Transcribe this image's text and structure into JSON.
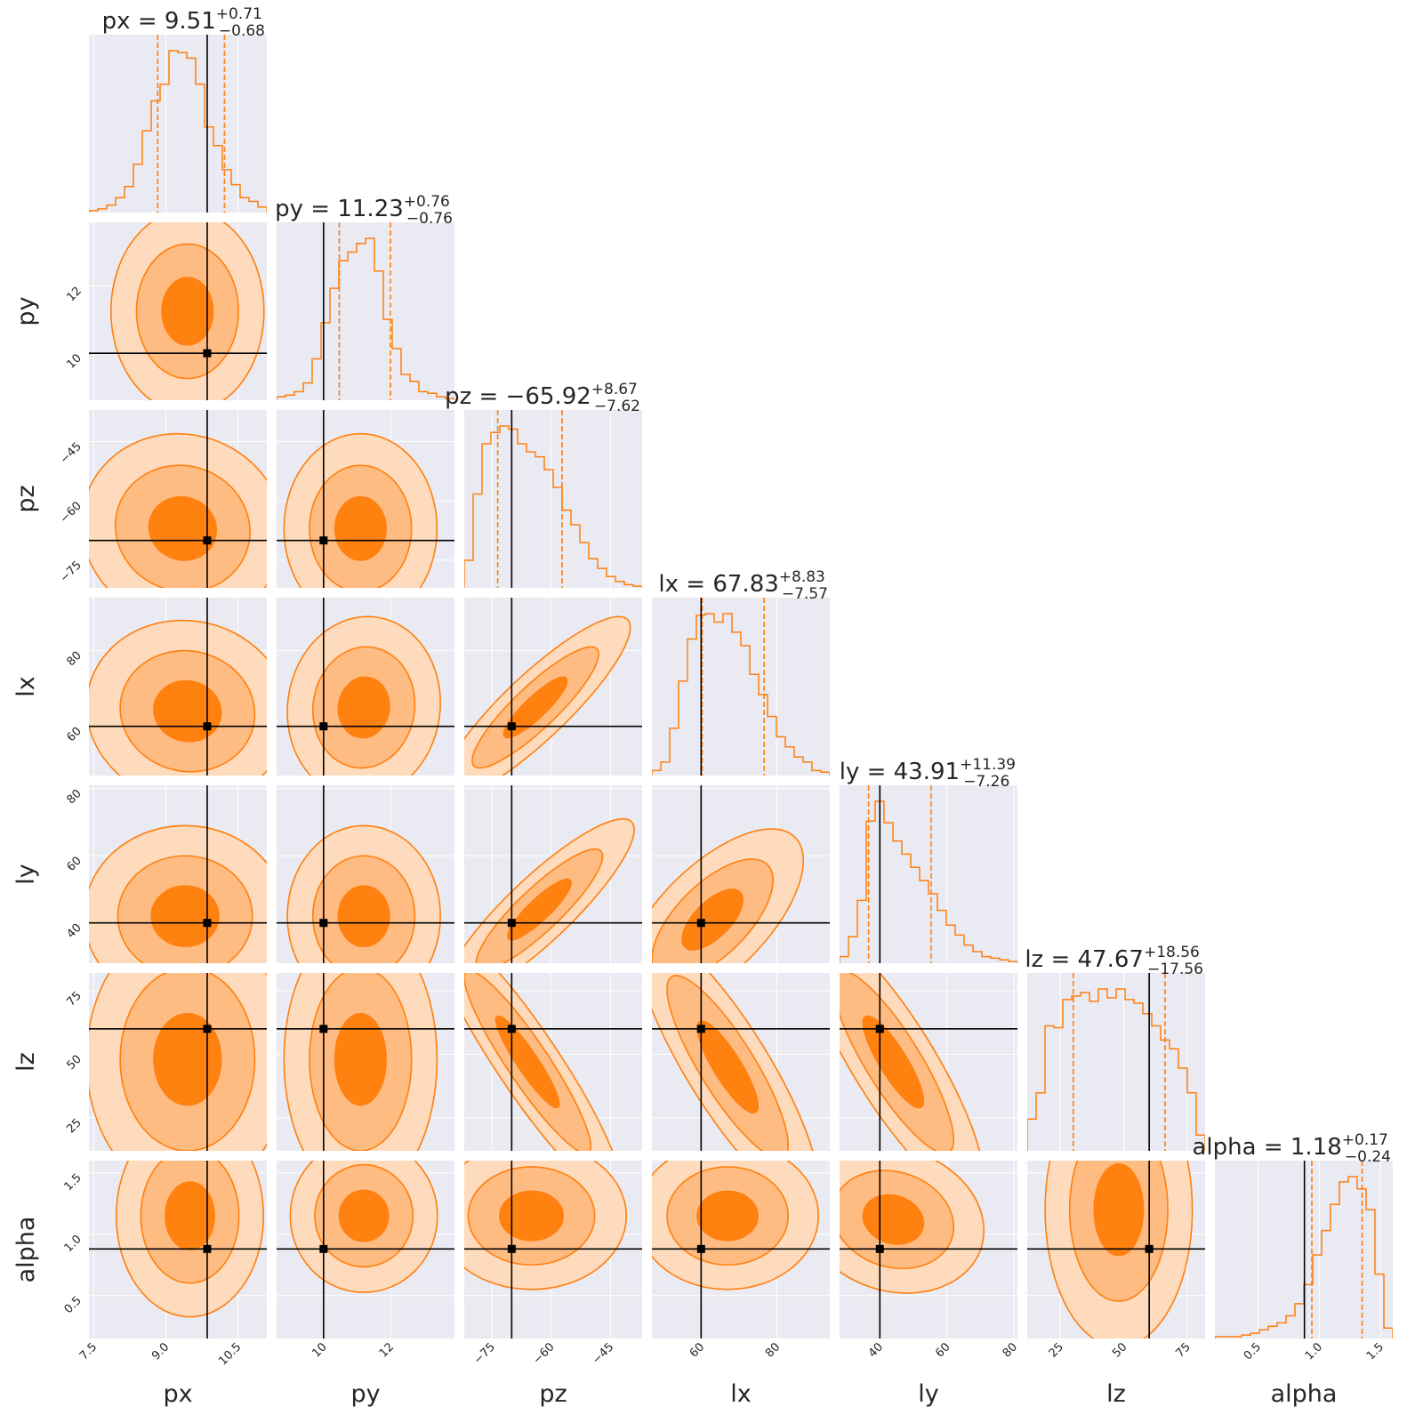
{
  "chart_data": {
    "type": "corner",
    "parameters": [
      "px",
      "py",
      "pz",
      "lx",
      "ly",
      "lz",
      "alpha"
    ],
    "colors": {
      "accent": "#ff7f0e",
      "truth": "#000000",
      "panel_bg": "#eaeaf2",
      "grid": "#ffffff"
    },
    "contour_levels": [
      "1-sigma",
      "2-sigma",
      "3-sigma"
    ],
    "params": [
      {
        "name": "px",
        "median": "9.51",
        "plus": "+0.71",
        "minus": "−0.68",
        "truth": 9.86,
        "range": [
          7.4,
          11.1
        ],
        "ticks": [
          7.5,
          9.0,
          10.5
        ],
        "ticklabels": [
          "7.5",
          "9.0",
          "10.5"
        ],
        "sd": 0.7
      },
      {
        "name": "py",
        "median": "11.23",
        "plus": "+0.76",
        "minus": "−0.76",
        "truth": 10.0,
        "range": [
          8.6,
          13.9
        ],
        "ticks": [
          10,
          12
        ],
        "ticklabels": [
          "10",
          "12"
        ],
        "sd": 0.76
      },
      {
        "name": "pz",
        "median": "−65.92",
        "plus": "+8.67",
        "minus": "−7.62",
        "truth": -70.0,
        "range": [
          -82,
          -37
        ],
        "ticks": [
          -75,
          -60,
          -45
        ],
        "ticklabels": [
          "−75",
          "−60",
          "−45"
        ],
        "sd": 8.0
      },
      {
        "name": "lx",
        "median": "67.83",
        "plus": "+8.83",
        "minus": "−7.57",
        "truth": 60.0,
        "range": [
          47,
          94
        ],
        "ticks": [
          60,
          80
        ],
        "ticklabels": [
          "60",
          "80"
        ],
        "sd": 8.0
      },
      {
        "name": "ly",
        "median": "43.91",
        "plus": "+11.39",
        "minus": "−7.26",
        "truth": 40.0,
        "range": [
          28,
          81
        ],
        "ticks": [
          40,
          60,
          80
        ],
        "ticklabels": [
          "40",
          "60",
          "80"
        ],
        "sd": 9.0
      },
      {
        "name": "lz",
        "median": "47.67",
        "plus": "+18.56",
        "minus": "−17.56",
        "truth": 60.0,
        "range": [
          12,
          82
        ],
        "ticks": [
          25,
          50,
          75
        ],
        "ticklabels": [
          "25",
          "50",
          "75"
        ],
        "sd": 18.0
      },
      {
        "name": "alpha",
        "median": "1.18",
        "plus": "+0.17",
        "minus": "−0.24",
        "truth": 0.88,
        "range": [
          0.15,
          1.6
        ],
        "ticks": [
          0.5,
          1.0,
          1.5
        ],
        "ticklabels": [
          "0.5",
          "1.0",
          "1.5"
        ],
        "sd": 0.2
      }
    ],
    "histograms": [
      {
        "param": "px",
        "quantiles": [
          8.83,
          10.22
        ],
        "counts": [
          1,
          2,
          4,
          8,
          14,
          26,
          44,
          60,
          69,
          87,
          86,
          83,
          69,
          46,
          36,
          23,
          15,
          8,
          6,
          3
        ]
      },
      {
        "param": "py",
        "quantiles": [
          10.47,
          11.99
        ],
        "counts": [
          2,
          3,
          5,
          10,
          24,
          45,
          65,
          81,
          86,
          91,
          94,
          75,
          47,
          30,
          15,
          11,
          5,
          4,
          2,
          1
        ]
      },
      {
        "param": "pz",
        "quantiles": [
          -73.54,
          -57.25
        ],
        "counts": [
          17,
          58,
          89,
          96,
          100,
          98,
          89,
          84,
          81,
          73,
          62,
          48,
          39,
          28,
          18,
          12,
          7,
          4,
          2,
          1
        ]
      },
      {
        "param": "lx",
        "quantiles": [
          60.26,
          76.66
        ],
        "counts": [
          3,
          8,
          28,
          56,
          81,
          95,
          96,
          91,
          96,
          85,
          77,
          60,
          48,
          35,
          23,
          17,
          11,
          8,
          3,
          2
        ]
      },
      {
        "param": "ly",
        "quantiles": [
          36.65,
          55.3
        ],
        "counts": [
          4,
          16,
          38,
          86,
          98,
          85,
          74,
          66,
          58,
          50,
          42,
          32,
          23,
          17,
          11,
          7,
          4,
          3,
          2,
          1
        ]
      },
      {
        "param": "lz",
        "quantiles": [
          30.11,
          66.23
        ],
        "counts": [
          18,
          33,
          71,
          70,
          86,
          88,
          90,
          85,
          92,
          87,
          92,
          86,
          84,
          78,
          71,
          63,
          58,
          47,
          33,
          9
        ]
      },
      {
        "param": "alpha",
        "quantiles": [
          0.94,
          1.35
        ],
        "counts": [
          1,
          1,
          1,
          2,
          3,
          5,
          7,
          9,
          13,
          20,
          31,
          48,
          62,
          77,
          90,
          93,
          86,
          74,
          37,
          6
        ]
      }
    ],
    "pairs": [
      {
        "x": "px",
        "y": "py",
        "center": [
          9.45,
          11.25
        ],
        "rho": 0.0
      },
      {
        "x": "px",
        "y": "pz",
        "center": [
          9.35,
          -67.0
        ],
        "rho": -0.05
      },
      {
        "x": "py",
        "y": "pz",
        "center": [
          11.1,
          -67.0
        ],
        "rho": 0.0
      },
      {
        "x": "px",
        "y": "lx",
        "center": [
          9.45,
          64.0
        ],
        "rho": -0.05
      },
      {
        "x": "py",
        "y": "lx",
        "center": [
          11.2,
          65.0
        ],
        "rho": 0.05
      },
      {
        "x": "pz",
        "y": "lx",
        "center": [
          -64.0,
          65.0
        ],
        "rho": 0.88
      },
      {
        "x": "px",
        "y": "ly",
        "center": [
          9.4,
          42.0
        ],
        "rho": 0.0
      },
      {
        "x": "py",
        "y": "ly",
        "center": [
          11.2,
          42.0
        ],
        "rho": 0.0
      },
      {
        "x": "pz",
        "y": "ly",
        "center": [
          -63.0,
          44.0
        ],
        "rho": 0.88
      },
      {
        "x": "lx",
        "y": "ly",
        "center": [
          63.0,
          41.0
        ],
        "rho": 0.65
      },
      {
        "x": "px",
        "y": "lz",
        "center": [
          9.45,
          48.0
        ],
        "rho": 0.0
      },
      {
        "x": "py",
        "y": "lz",
        "center": [
          11.1,
          48.0
        ],
        "rho": 0.0
      },
      {
        "x": "pz",
        "y": "lz",
        "center": [
          -66.0,
          47.0
        ],
        "rho": -0.92
      },
      {
        "x": "lx",
        "y": "lz",
        "center": [
          67.0,
          45.0
        ],
        "rho": -0.85
      },
      {
        "x": "ly",
        "y": "lz",
        "center": [
          44.0,
          47.0
        ],
        "rho": -0.85
      },
      {
        "x": "px",
        "y": "alpha",
        "center": [
          9.5,
          1.15
        ],
        "rho": 0.0
      },
      {
        "x": "py",
        "y": "alpha",
        "center": [
          11.2,
          1.15
        ],
        "rho": 0.0
      },
      {
        "x": "pz",
        "y": "alpha",
        "center": [
          -65.0,
          1.15
        ],
        "rho": 0.0
      },
      {
        "x": "lx",
        "y": "alpha",
        "center": [
          67.0,
          1.15
        ],
        "rho": 0.0
      },
      {
        "x": "ly",
        "y": "alpha",
        "center": [
          44.0,
          1.12
        ],
        "rho": -0.15
      },
      {
        "x": "lz",
        "y": "alpha",
        "center": [
          48.0,
          1.2
        ],
        "rho": 0.0
      }
    ]
  }
}
